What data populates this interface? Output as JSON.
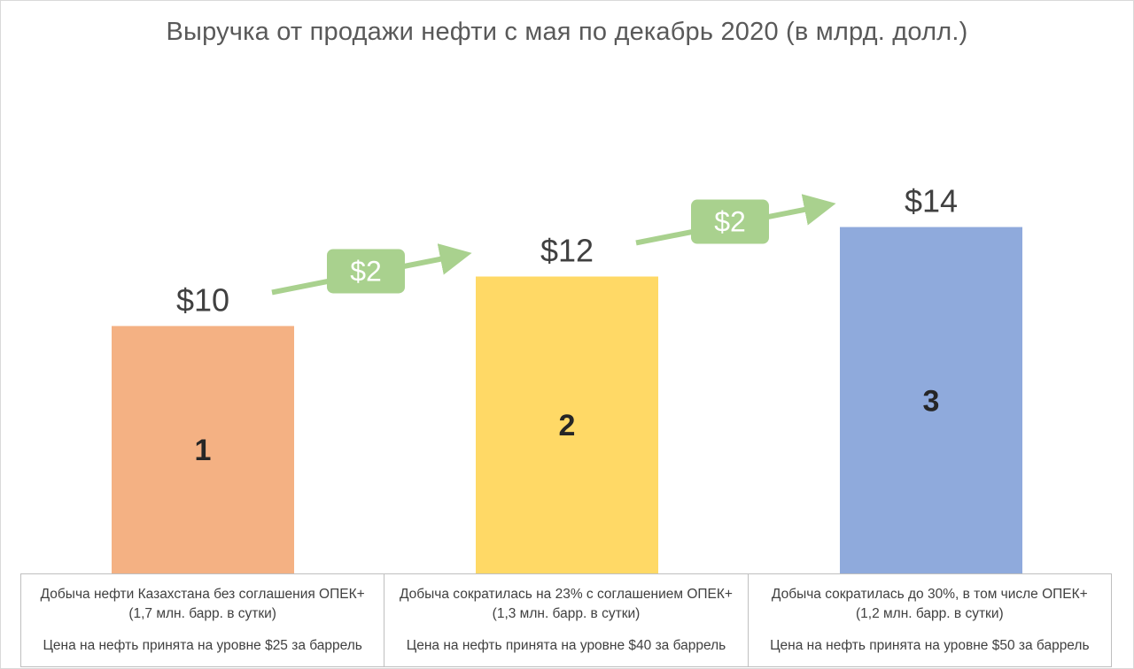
{
  "chart_data": {
    "type": "bar",
    "title": "Выручка от продажи нефти с мая по декабрь 2020 (в млрд. долл.)",
    "categories": [
      "1",
      "2",
      "3"
    ],
    "values": [
      10,
      12,
      14
    ],
    "value_labels": [
      "$10",
      "$12",
      "$14"
    ],
    "colors": [
      "#f4b183",
      "#ffd966",
      "#8faadc"
    ],
    "ylim": [
      0,
      19.6
    ],
    "grid": false,
    "legend": "none",
    "increments": [
      {
        "from": "1",
        "to": "2",
        "label": "$2"
      },
      {
        "from": "2",
        "to": "3",
        "label": "$2"
      }
    ],
    "increment_color": "#a9d18e",
    "category_descriptions": [
      {
        "line1": "Добыча нефти Казахстана без соглашения ОПЕК+",
        "line2": "(1,7 млн. барр. в сутки)",
        "price": "Цена на нефть принята на уровне $25 за баррель"
      },
      {
        "line1": "Добыча сократилась на 23% с соглашением ОПЕК+",
        "line2": "(1,3 млн. барр. в сутки)",
        "price": "Цена на нефть принята на уровне $40 за баррель"
      },
      {
        "line1": "Добыча сократилась до 30%, в том числе ОПЕК+",
        "line2": "(1,2 млн. барр. в сутки)",
        "price": "Цена на нефть принята на уровне $50 за баррель"
      }
    ]
  }
}
